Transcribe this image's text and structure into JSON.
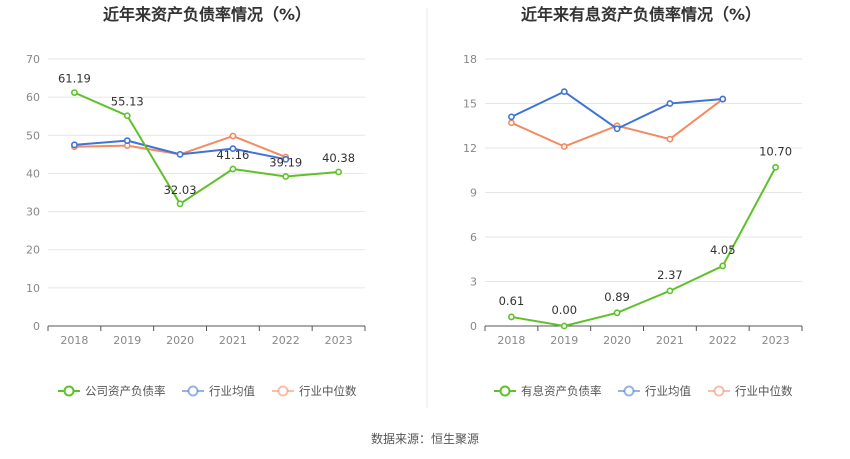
{
  "source_text": "数据来源：恒生聚源",
  "chart_data": [
    {
      "type": "line",
      "title": "近年来资产负债率情况（%）",
      "categories": [
        "2018",
        "2019",
        "2020",
        "2021",
        "2022",
        "2023"
      ],
      "ylim": [
        0,
        70
      ],
      "yticks": [
        0,
        10,
        20,
        30,
        40,
        50,
        60,
        70
      ],
      "grid": true,
      "legend_position": "bottom",
      "series": [
        {
          "name": "公司资产负债率",
          "color": "#5fc12a",
          "values": [
            61.19,
            55.13,
            32.03,
            41.16,
            39.19,
            40.38
          ],
          "labels": [
            "61.19",
            "55.13",
            "32.03",
            "41.16",
            "39.19",
            "40.38"
          ]
        },
        {
          "name": "行业均值",
          "color": "#3f73d8",
          "values": [
            47.5,
            48.6,
            45.0,
            46.5,
            43.7,
            null
          ]
        },
        {
          "name": "行业中位数",
          "color": "#f28b62",
          "values": [
            47.0,
            47.3,
            45.0,
            49.8,
            44.3,
            null
          ]
        }
      ]
    },
    {
      "type": "line",
      "title": "近年来有息资产负债率情况（%）",
      "categories": [
        "2018",
        "2019",
        "2020",
        "2021",
        "2022",
        "2023"
      ],
      "ylim": [
        0,
        18
      ],
      "yticks": [
        0,
        3,
        6,
        9,
        12,
        15,
        18
      ],
      "grid": true,
      "legend_position": "bottom",
      "series": [
        {
          "name": "有息资产负债率",
          "color": "#5fc12a",
          "values": [
            0.61,
            0.0,
            0.89,
            2.37,
            4.05,
            10.7
          ],
          "labels": [
            "0.61",
            "0.00",
            "0.89",
            "2.37",
            "4.05",
            "10.70"
          ]
        },
        {
          "name": "行业均值",
          "color": "#3f73d8",
          "values": [
            14.1,
            15.8,
            13.3,
            15.0,
            15.3,
            null
          ]
        },
        {
          "name": "行业中位数",
          "color": "#f28b62",
          "values": [
            13.7,
            12.1,
            13.5,
            12.6,
            15.3,
            null
          ]
        }
      ]
    }
  ]
}
